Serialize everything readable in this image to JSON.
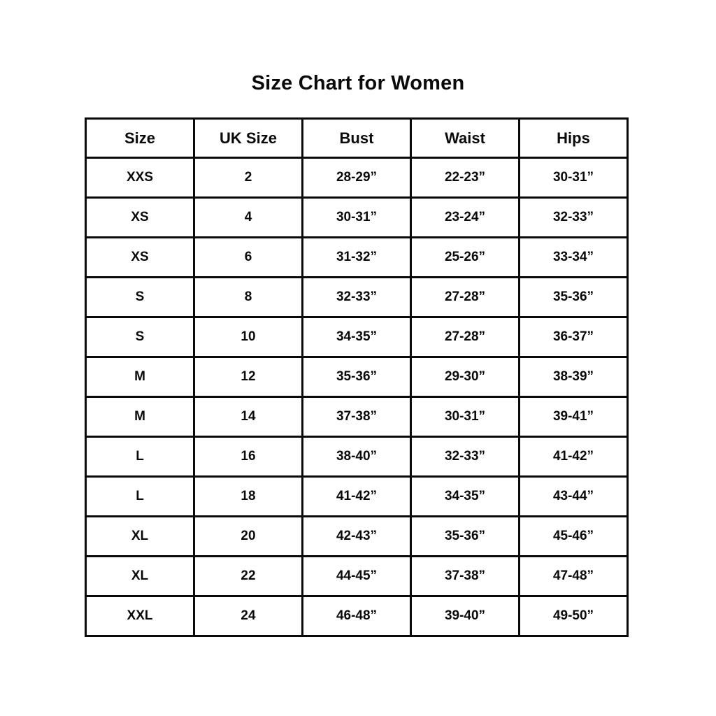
{
  "page": {
    "title": "Size Chart for Women"
  },
  "chart_data": {
    "type": "table",
    "title": "Size Chart for Women",
    "columns": [
      "Size",
      "UK Size",
      "Bust",
      "Waist",
      "Hips"
    ],
    "rows": [
      [
        "XXS",
        "2",
        "28-29”",
        "22-23”",
        "30-31”"
      ],
      [
        "XS",
        "4",
        "30-31”",
        "23-24”",
        "32-33”"
      ],
      [
        "XS",
        "6",
        "31-32”",
        "25-26”",
        "33-34”"
      ],
      [
        "S",
        "8",
        "32-33”",
        "27-28”",
        "35-36”"
      ],
      [
        "S",
        "10",
        "34-35”",
        "27-28”",
        "36-37”"
      ],
      [
        "M",
        "12",
        "35-36”",
        "29-30”",
        "38-39”"
      ],
      [
        "M",
        "14",
        "37-38”",
        "30-31”",
        "39-41”"
      ],
      [
        "L",
        "16",
        "38-40”",
        "32-33”",
        "41-42”"
      ],
      [
        "L",
        "18",
        "41-42”",
        "34-35”",
        "43-44”"
      ],
      [
        "XL",
        "20",
        "42-43”",
        "35-36”",
        "45-46”"
      ],
      [
        "XL",
        "22",
        "44-45”",
        "37-38”",
        "47-48”"
      ],
      [
        "XXL",
        "24",
        "46-48”",
        "39-40”",
        "49-50”"
      ]
    ],
    "layout": {
      "border_color": "#0a0a0a",
      "background_color": "#ffffff",
      "text_color": "#0a0a0a",
      "grid": "on"
    }
  }
}
